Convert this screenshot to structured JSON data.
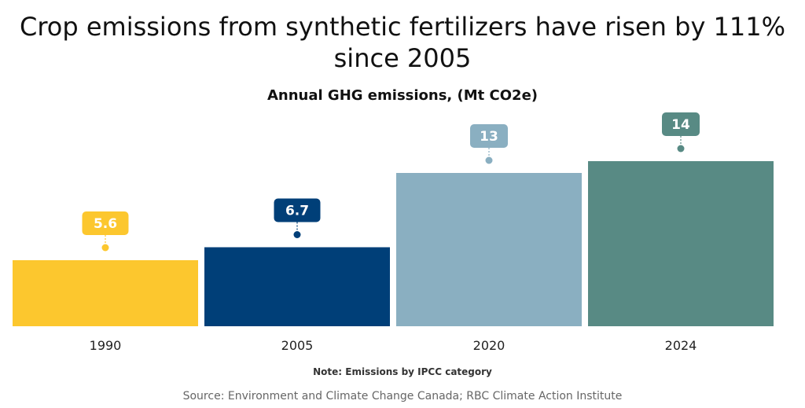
{
  "title": "Crop emissions from synthetic fertilizers have risen by 111% since 2005",
  "subtitle": "Annual GHG emissions, (Mt CO2e)",
  "note": "Note: Emissions by IPCC category",
  "source": "Source: Environment and Climate Change Canada; RBC Climate Action Institute",
  "colors": [
    "#fcc72e",
    "#003f78",
    "#8aafc1",
    "#588a84"
  ],
  "chart_data": {
    "type": "bar",
    "title": "Crop emissions from synthetic fertilizers have risen by 111% since 2005",
    "subtitle": "Annual GHG emissions, (Mt CO2e)",
    "categories": [
      "1990",
      "2005",
      "2020",
      "2024"
    ],
    "values": [
      5.6,
      6.7,
      13,
      14
    ],
    "value_labels": [
      "5.6",
      "6.7",
      "13",
      "14"
    ],
    "xlabel": "",
    "ylabel": "",
    "ylim": [
      0,
      21
    ],
    "grid": false,
    "legend": "none"
  }
}
